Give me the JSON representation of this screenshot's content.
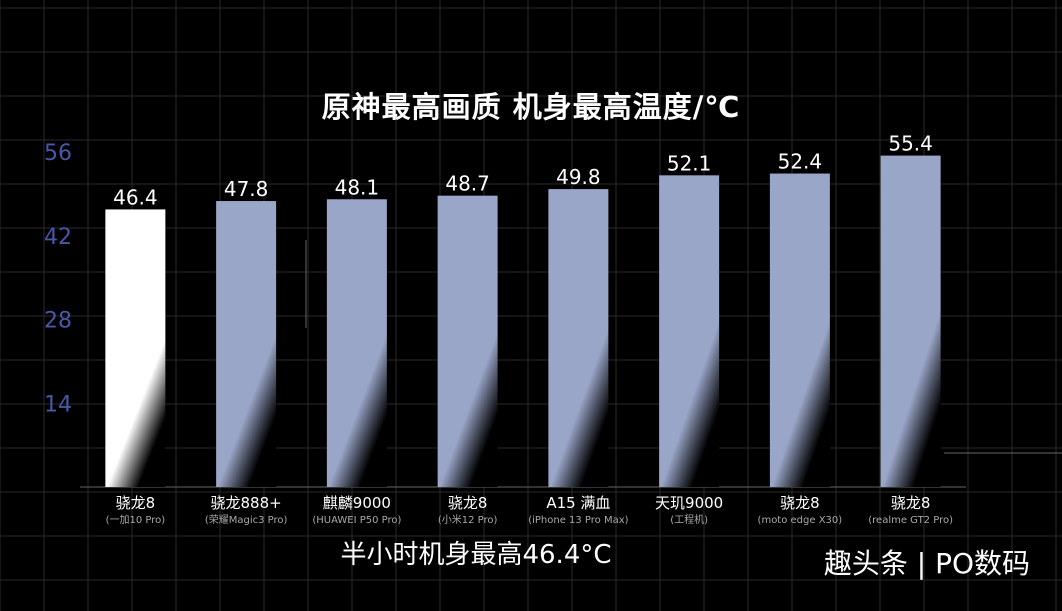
{
  "title": "原神最高画质  机身最高温度/℃",
  "subtitle": "半小时机身最高46.4°C",
  "watermark": "趣头条 | PO数码",
  "colors": {
    "background": "#000000",
    "grid": "#2a2a2a",
    "bar": "#9aa6c8",
    "highlight_bar": "#ffffff",
    "tick": "#4a57a8",
    "text": "#ffffff",
    "sublabel": "#a9a9a9"
  },
  "chart_data": {
    "type": "bar",
    "title": "原神最高画质  机身最高温度/℃",
    "categories": [
      "骁龙8",
      "骁龙888+",
      "麒麟9000",
      "骁龙8",
      "A15 满血",
      "天玑9000",
      "骁龙8",
      "骁龙8"
    ],
    "sublabels": [
      "(一加10 Pro)",
      "(荣耀Magic3 Pro)",
      "(HUAWEI P50 Pro)",
      "(小米12 Pro)",
      "(iPhone 13 Pro Max)",
      "(工程机)",
      "(moto edge X30)",
      "(realme GT2 Pro)"
    ],
    "values": [
      46.4,
      47.8,
      48.1,
      48.7,
      49.8,
      52.1,
      52.4,
      55.4
    ],
    "value_labels": [
      "46.4",
      "47.8",
      "48.1",
      "48.7",
      "49.8",
      "52.1",
      "52.4",
      "55.4"
    ],
    "highlight_index": 0,
    "yticks": [
      14,
      28,
      42,
      56
    ],
    "ytick_labels": [
      "14",
      "28",
      "42",
      "56"
    ],
    "ylim": [
      0,
      56
    ],
    "grid": true,
    "xlabel": "",
    "ylabel": ""
  }
}
